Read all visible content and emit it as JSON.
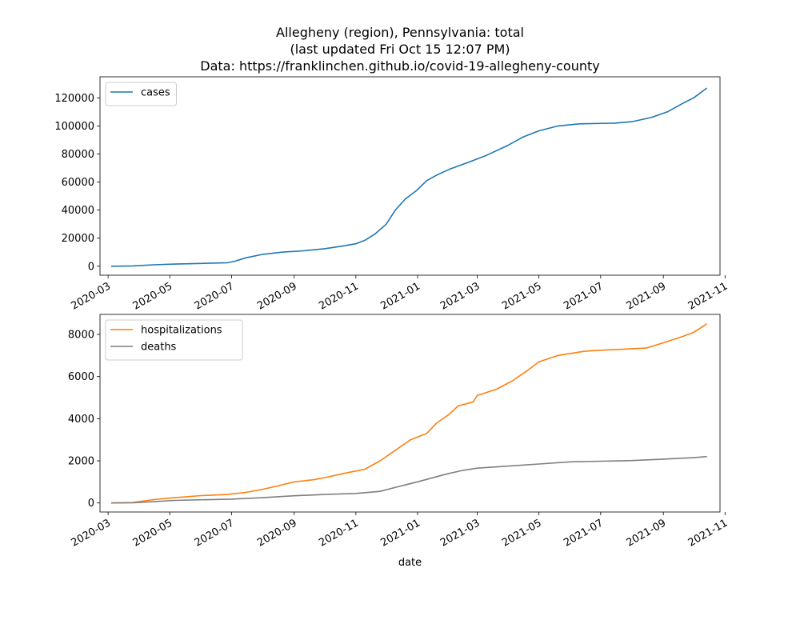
{
  "figure_title": {
    "line1": "Allegheny (region), Pennsylvania: total",
    "line2": "(last updated Fri Oct 15 12:07 PM)",
    "line3": "Data: https://franklinchen.github.io/covid-19-allegheny-county"
  },
  "chart_data": [
    {
      "type": "line",
      "title": "",
      "xlabel": "",
      "ylabel": "",
      "x_type": "date",
      "xlim": [
        "2020-02-22",
        "2021-10-27"
      ],
      "ylim": [
        -6400,
        135000
      ],
      "x_ticks": [
        "2020-03",
        "2020-05",
        "2020-07",
        "2020-09",
        "2020-11",
        "2021-01",
        "2021-03",
        "2021-05",
        "2021-07",
        "2021-09",
        "2021-11"
      ],
      "y_ticks": [
        0,
        20000,
        40000,
        60000,
        80000,
        100000,
        120000
      ],
      "grid": false,
      "legend": "upper left",
      "series": [
        {
          "name": "cases",
          "color": "#1f77b4",
          "points": [
            [
              "2020-03-04",
              0
            ],
            [
              "2020-03-25",
              200
            ],
            [
              "2020-04-15",
              1000
            ],
            [
              "2020-05-06",
              1500
            ],
            [
              "2020-06-01",
              2000
            ],
            [
              "2020-06-27",
              2500
            ],
            [
              "2020-07-04",
              3500
            ],
            [
              "2020-07-15",
              6000
            ],
            [
              "2020-08-01",
              8500
            ],
            [
              "2020-08-20",
              10000
            ],
            [
              "2020-09-10",
              11000
            ],
            [
              "2020-10-01",
              12500
            ],
            [
              "2020-10-20",
              14500
            ],
            [
              "2020-11-01",
              16000
            ],
            [
              "2020-11-10",
              18500
            ],
            [
              "2020-11-20",
              23000
            ],
            [
              "2020-12-01",
              30000
            ],
            [
              "2020-12-10",
              40000
            ],
            [
              "2020-12-20",
              48000
            ],
            [
              "2020-12-31",
              54000
            ],
            [
              "2021-01-10",
              61000
            ],
            [
              "2021-01-20",
              65000
            ],
            [
              "2021-02-01",
              69000
            ],
            [
              "2021-02-20",
              74000
            ],
            [
              "2021-03-10",
              79000
            ],
            [
              "2021-03-31",
              86000
            ],
            [
              "2021-04-15",
              92000
            ],
            [
              "2021-05-01",
              96500
            ],
            [
              "2021-05-20",
              100000
            ],
            [
              "2021-06-10",
              101500
            ],
            [
              "2021-07-15",
              102000
            ],
            [
              "2021-08-01",
              103000
            ],
            [
              "2021-08-20",
              106000
            ],
            [
              "2021-09-05",
              110000
            ],
            [
              "2021-09-20",
              116000
            ],
            [
              "2021-10-01",
              120000
            ],
            [
              "2021-10-14",
              127000
            ]
          ]
        }
      ]
    },
    {
      "type": "line",
      "title": "",
      "xlabel": "date",
      "ylabel": "",
      "x_type": "date",
      "xlim": [
        "2020-02-22",
        "2021-10-27"
      ],
      "ylim": [
        -430,
        8950
      ],
      "x_ticks": [
        "2020-03",
        "2020-05",
        "2020-07",
        "2020-09",
        "2020-11",
        "2021-01",
        "2021-03",
        "2021-05",
        "2021-07",
        "2021-09",
        "2021-11"
      ],
      "y_ticks": [
        0,
        2000,
        4000,
        6000,
        8000
      ],
      "grid": false,
      "legend": "upper left",
      "series": [
        {
          "name": "hospitalizations",
          "color": "#ff7f0e",
          "points": [
            [
              "2020-03-04",
              0
            ],
            [
              "2020-03-25",
              20
            ],
            [
              "2020-04-15",
              160
            ],
            [
              "2020-05-06",
              250
            ],
            [
              "2020-06-01",
              350
            ],
            [
              "2020-06-27",
              400
            ],
            [
              "2020-07-15",
              500
            ],
            [
              "2020-08-01",
              650
            ],
            [
              "2020-08-15",
              800
            ],
            [
              "2020-09-01",
              1000
            ],
            [
              "2020-09-20",
              1100
            ],
            [
              "2020-10-01",
              1200
            ],
            [
              "2020-10-20",
              1400
            ],
            [
              "2020-11-10",
              1600
            ],
            [
              "2020-11-25",
              2000
            ],
            [
              "2020-12-10",
              2500
            ],
            [
              "2020-12-25",
              3000
            ],
            [
              "2021-01-10",
              3300
            ],
            [
              "2021-01-20",
              3800
            ],
            [
              "2021-02-01",
              4200
            ],
            [
              "2021-02-10",
              4600
            ],
            [
              "2021-02-25",
              4800
            ],
            [
              "2021-03-01",
              5100
            ],
            [
              "2021-03-20",
              5400
            ],
            [
              "2021-04-05",
              5800
            ],
            [
              "2021-04-20",
              6300
            ],
            [
              "2021-05-01",
              6700
            ],
            [
              "2021-05-20",
              7000
            ],
            [
              "2021-06-15",
              7200
            ],
            [
              "2021-07-01",
              7250
            ],
            [
              "2021-07-25",
              7300
            ],
            [
              "2021-08-15",
              7350
            ],
            [
              "2021-09-01",
              7600
            ],
            [
              "2021-09-20",
              7900
            ],
            [
              "2021-10-01",
              8100
            ],
            [
              "2021-10-14",
              8500
            ]
          ]
        },
        {
          "name": "deaths",
          "color": "#7f7f7f",
          "points": [
            [
              "2020-03-04",
              0
            ],
            [
              "2020-03-25",
              5
            ],
            [
              "2020-04-15",
              60
            ],
            [
              "2020-05-06",
              120
            ],
            [
              "2020-06-01",
              150
            ],
            [
              "2020-07-01",
              180
            ],
            [
              "2020-08-01",
              250
            ],
            [
              "2020-09-01",
              340
            ],
            [
              "2020-10-01",
              400
            ],
            [
              "2020-11-01",
              450
            ],
            [
              "2020-11-25",
              550
            ],
            [
              "2020-12-15",
              800
            ],
            [
              "2021-01-01",
              1000
            ],
            [
              "2021-01-20",
              1250
            ],
            [
              "2021-02-01",
              1400
            ],
            [
              "2021-02-15",
              1550
            ],
            [
              "2021-03-01",
              1650
            ],
            [
              "2021-04-01",
              1750
            ],
            [
              "2021-05-01",
              1850
            ],
            [
              "2021-06-01",
              1950
            ],
            [
              "2021-07-01",
              1980
            ],
            [
              "2021-08-01",
              2010
            ],
            [
              "2021-09-01",
              2080
            ],
            [
              "2021-10-01",
              2150
            ],
            [
              "2021-10-14",
              2200
            ]
          ]
        }
      ]
    }
  ]
}
